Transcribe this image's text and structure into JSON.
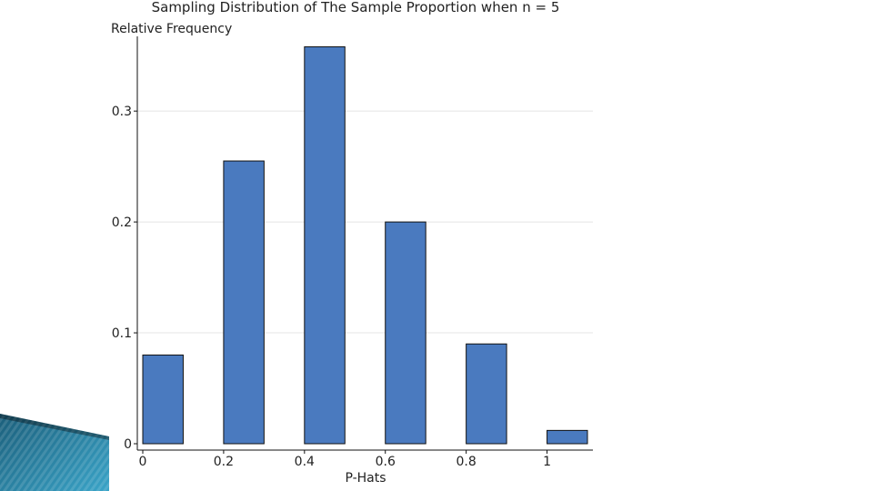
{
  "slide": {
    "decor_color_dark": "#1b5e7a",
    "decor_color_light": "#3aa4c8"
  },
  "chart_data": {
    "type": "bar",
    "title": "Sampling Distribution of The Sample Proportion when n = 5",
    "xlabel": "P-Hats",
    "ylabel": "Relative Frequency",
    "categories": [
      "0",
      "0.2",
      "0.4",
      "0.6",
      "0.8",
      "1"
    ],
    "x": [
      0,
      0.2,
      0.4,
      0.6,
      0.8,
      1
    ],
    "values": [
      0.08,
      0.255,
      0.358,
      0.2,
      0.09,
      0.012
    ],
    "bar_width": 0.1,
    "xlim": [
      0,
      1.1
    ],
    "ylim": [
      0,
      0.36
    ],
    "xticks": [
      0,
      0.2,
      0.4,
      0.6,
      0.8,
      1
    ],
    "xtick_labels": [
      "0",
      "0.2",
      "0.4",
      "0.6",
      "0.8",
      "1"
    ],
    "yticks": [
      0,
      0.1,
      0.2,
      0.3
    ],
    "ytick_labels": [
      "0",
      "0.1",
      "0.2",
      "0.3"
    ],
    "grid": true,
    "bar_color": "#4a7abf"
  }
}
